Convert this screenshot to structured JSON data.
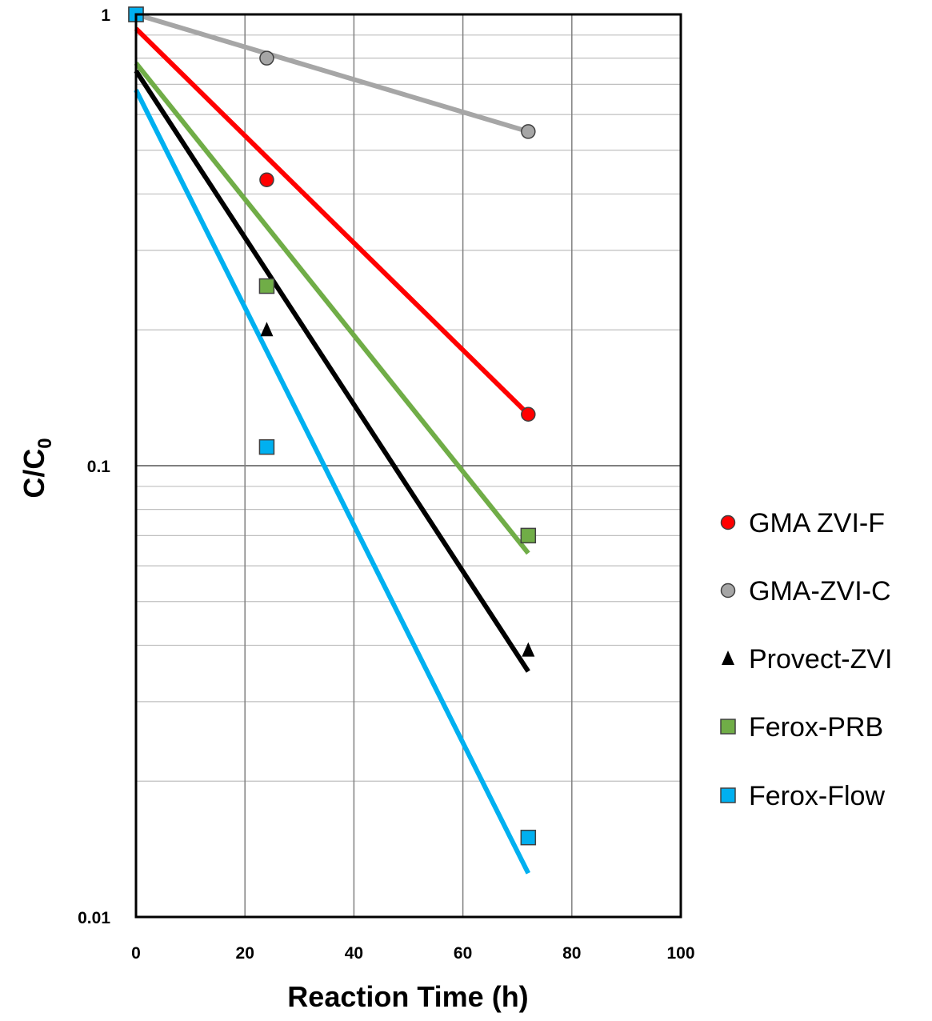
{
  "chart_data": {
    "type": "scatter",
    "xlabel": "Reaction Time (h)",
    "ylabel": {
      "main": "C/C",
      "subscript": "0"
    },
    "xlim": [
      0,
      100
    ],
    "ylim": [
      0.01,
      1
    ],
    "y_scale": "log",
    "grid": true,
    "legend_position": "right",
    "x_ticks": [
      "0",
      "20",
      "40",
      "60",
      "80",
      "100"
    ],
    "y_ticks": [
      {
        "value": 1,
        "label": "1"
      },
      {
        "value": 0.1,
        "label": "0.1"
      },
      {
        "value": 0.01,
        "label": "0.01"
      }
    ],
    "series": [
      {
        "name": "GMA ZVI-F",
        "marker": "circle",
        "color": "#ff0000",
        "points": [
          {
            "x": 0,
            "y": 1
          },
          {
            "x": 24,
            "y": 0.43
          },
          {
            "x": 72,
            "y": 0.13
          }
        ],
        "fit": [
          {
            "x": 0,
            "y": 0.93
          },
          {
            "x": 72,
            "y": 0.13
          }
        ]
      },
      {
        "name": "GMA-ZVI-C",
        "marker": "circle",
        "color": "#a6a6a6",
        "points": [
          {
            "x": 0,
            "y": 1
          },
          {
            "x": 24,
            "y": 0.8
          },
          {
            "x": 72,
            "y": 0.55
          }
        ],
        "fit": [
          {
            "x": 0,
            "y": 1
          },
          {
            "x": 72,
            "y": 0.55
          }
        ]
      },
      {
        "name": "Provect-ZVI",
        "marker": "triangle",
        "color": "#000000",
        "points": [
          {
            "x": 0,
            "y": 1
          },
          {
            "x": 24,
            "y": 0.2
          },
          {
            "x": 72,
            "y": 0.039
          }
        ],
        "fit": [
          {
            "x": 0,
            "y": 0.75
          },
          {
            "x": 72,
            "y": 0.035
          }
        ]
      },
      {
        "name": "Ferox-PRB",
        "marker": "square",
        "color": "#70ad47",
        "points": [
          {
            "x": 0,
            "y": 1
          },
          {
            "x": 24,
            "y": 0.25
          },
          {
            "x": 72,
            "y": 0.07
          }
        ],
        "fit": [
          {
            "x": 0,
            "y": 0.78
          },
          {
            "x": 72,
            "y": 0.064
          }
        ]
      },
      {
        "name": "Ferox-Flow",
        "marker": "square",
        "color": "#00b0f0",
        "points": [
          {
            "x": 0,
            "y": 1
          },
          {
            "x": 24,
            "y": 0.11
          },
          {
            "x": 72,
            "y": 0.015
          }
        ],
        "fit": [
          {
            "x": 0,
            "y": 0.68
          },
          {
            "x": 72,
            "y": 0.0125
          }
        ]
      }
    ]
  }
}
